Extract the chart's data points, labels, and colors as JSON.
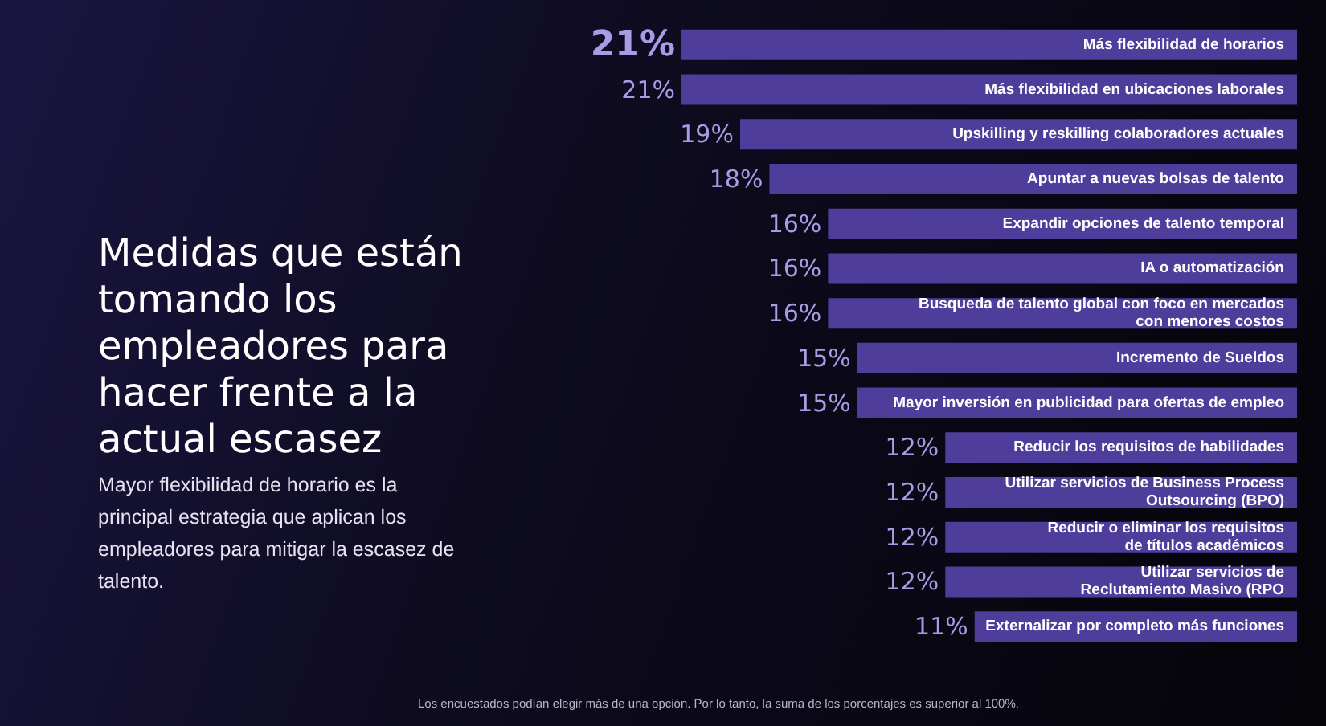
{
  "chart_data": {
    "type": "bar",
    "orientation": "horizontal",
    "tick_labels": "y",
    "title": "Medidas que están tomando los empleadores para hacer frente a la actual escasez",
    "subtitle": "Mayor flexibilidad de horario es la principal estrategia que aplican los empleadores para mitigar la escasez de talento.",
    "categories": [
      "Más flexibilidad de horarios",
      "Más flexibilidad en ubicaciones laborales",
      "Upskilling y reskilling colaboradores actuales",
      "Apuntar a nuevas bolsas de talento",
      "Expandir opciones de talento temporal",
      "IA o automatización",
      "Busqueda de talento global con foco en mercados\ncon menores costos",
      "Incremento de Sueldos",
      "Mayor inversión en publicidad para ofertas de empleo",
      "Reducir los requisitos de habilidades",
      "Utilizar servicios de Business Process\nOutsourcing (BPO)",
      "Reducir o eliminar los requisitos\nde títulos académicos",
      "Utilizar servicios de\nReclutamiento Masivo (RPO",
      "Externalizar por completo más funciones"
    ],
    "values": [
      21,
      21,
      19,
      18,
      16,
      16,
      16,
      15,
      15,
      12,
      12,
      12,
      12,
      11
    ],
    "value_labels": [
      "21%",
      "21%",
      "19%",
      "18%",
      "16%",
      "16%",
      "16%",
      "15%",
      "15%",
      "12%",
      "12%",
      "12%",
      "12%",
      "11%"
    ],
    "color": "#4f3d9c",
    "annotations": [
      "Los encuestados podían elegir más de una opción. Por lo tanto, la suma de los porcentajes es superior al 100%."
    ]
  }
}
